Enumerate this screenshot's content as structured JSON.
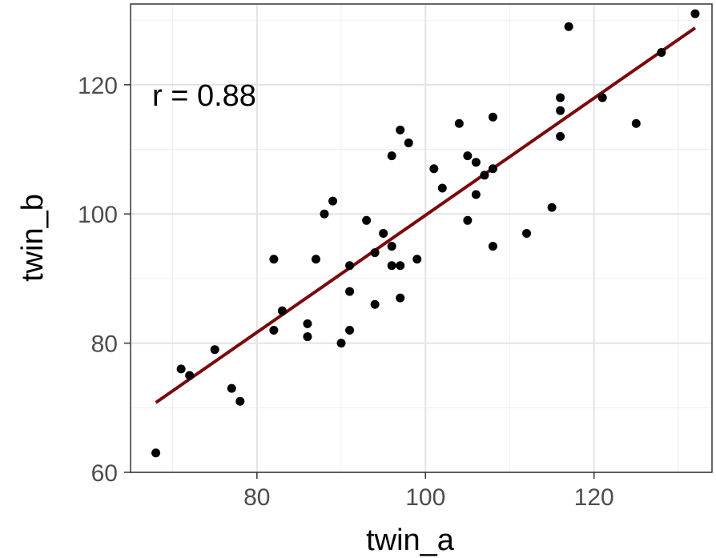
{
  "chart_data": {
    "type": "scatter",
    "xlabel": "twin_a",
    "ylabel": "twin_b",
    "xlim": [
      65,
      134
    ],
    "ylim": [
      60,
      132.5
    ],
    "x_ticks": [
      80,
      100,
      120
    ],
    "y_ticks": [
      60,
      80,
      100,
      120
    ],
    "x_minor": [
      70,
      90,
      110,
      130
    ],
    "y_minor": [
      70,
      90,
      110,
      130
    ],
    "grid": true,
    "annotation": "r = 0.88",
    "point_color": "#000000",
    "fit_color": "#7a0a0a",
    "fit_line": {
      "x": [
        68,
        132
      ],
      "y": [
        70.8,
        128.8
      ]
    },
    "points": [
      [
        68,
        63
      ],
      [
        71,
        76
      ],
      [
        72,
        75
      ],
      [
        75,
        79
      ],
      [
        77,
        73
      ],
      [
        78,
        71
      ],
      [
        82,
        93
      ],
      [
        82,
        82
      ],
      [
        83,
        85
      ],
      [
        86,
        83
      ],
      [
        86,
        81
      ],
      [
        87,
        93
      ],
      [
        88,
        100
      ],
      [
        89,
        102
      ],
      [
        90,
        80
      ],
      [
        91,
        92
      ],
      [
        91,
        88
      ],
      [
        91,
        82
      ],
      [
        93,
        99
      ],
      [
        94,
        94
      ],
      [
        94,
        86
      ],
      [
        95,
        97
      ],
      [
        96,
        109
      ],
      [
        96,
        95
      ],
      [
        96,
        92
      ],
      [
        97,
        113
      ],
      [
        97,
        92
      ],
      [
        97,
        87
      ],
      [
        98,
        111
      ],
      [
        99,
        93
      ],
      [
        101,
        107
      ],
      [
        102,
        104
      ],
      [
        104,
        114
      ],
      [
        105,
        109
      ],
      [
        105,
        99
      ],
      [
        106,
        108
      ],
      [
        106,
        103
      ],
      [
        107,
        106
      ],
      [
        108,
        115
      ],
      [
        108,
        107
      ],
      [
        108,
        95
      ],
      [
        112,
        97
      ],
      [
        115,
        101
      ],
      [
        116,
        118
      ],
      [
        116,
        116
      ],
      [
        116,
        112
      ],
      [
        117,
        129
      ],
      [
        121,
        118
      ],
      [
        125,
        114
      ],
      [
        128,
        125
      ],
      [
        132,
        131
      ]
    ]
  }
}
